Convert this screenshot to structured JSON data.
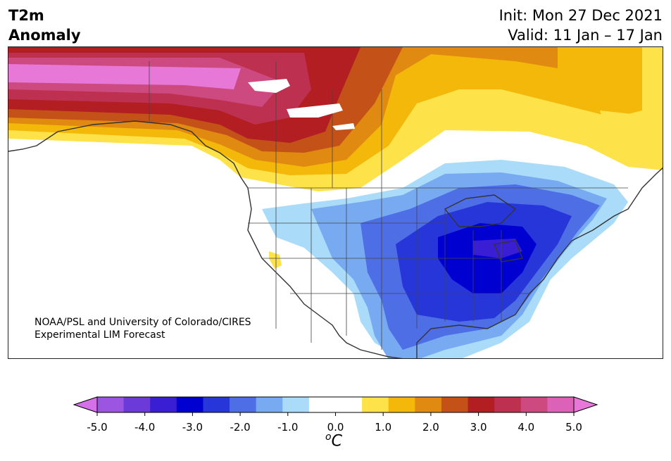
{
  "title": {
    "line1": "T2m",
    "line2": "Anomaly"
  },
  "info": {
    "init": "Init: Mon 27 Dec 2021",
    "valid": "Valid: 11 Jan – 17 Jan"
  },
  "credit": {
    "line1": "NOAA/PSL and University of Colorado/CIRES",
    "line2": "Experimental LIM Forecast"
  },
  "colorbar": {
    "colors": [
      "#d470e8",
      "#9b55e0",
      "#6b3ad8",
      "#3a1ed4",
      "#0000d0",
      "#2636d8",
      "#4e6ee6",
      "#78aaf2",
      "#aadcfa",
      "#ffffff",
      "#ffffff",
      "#fde24a",
      "#f3b80a",
      "#e08a12",
      "#c45218",
      "#b21e22",
      "#be3050",
      "#cc4a80",
      "#dc62b8",
      "#e878d8"
    ],
    "ticks": [
      "-5.0",
      "-4.0",
      "-3.0",
      "-2.0",
      "-1.0",
      "0.0",
      "1.0",
      "2.0",
      "3.0",
      "4.0",
      "5.0"
    ],
    "unit_sup": "o",
    "unit": "C"
  }
}
